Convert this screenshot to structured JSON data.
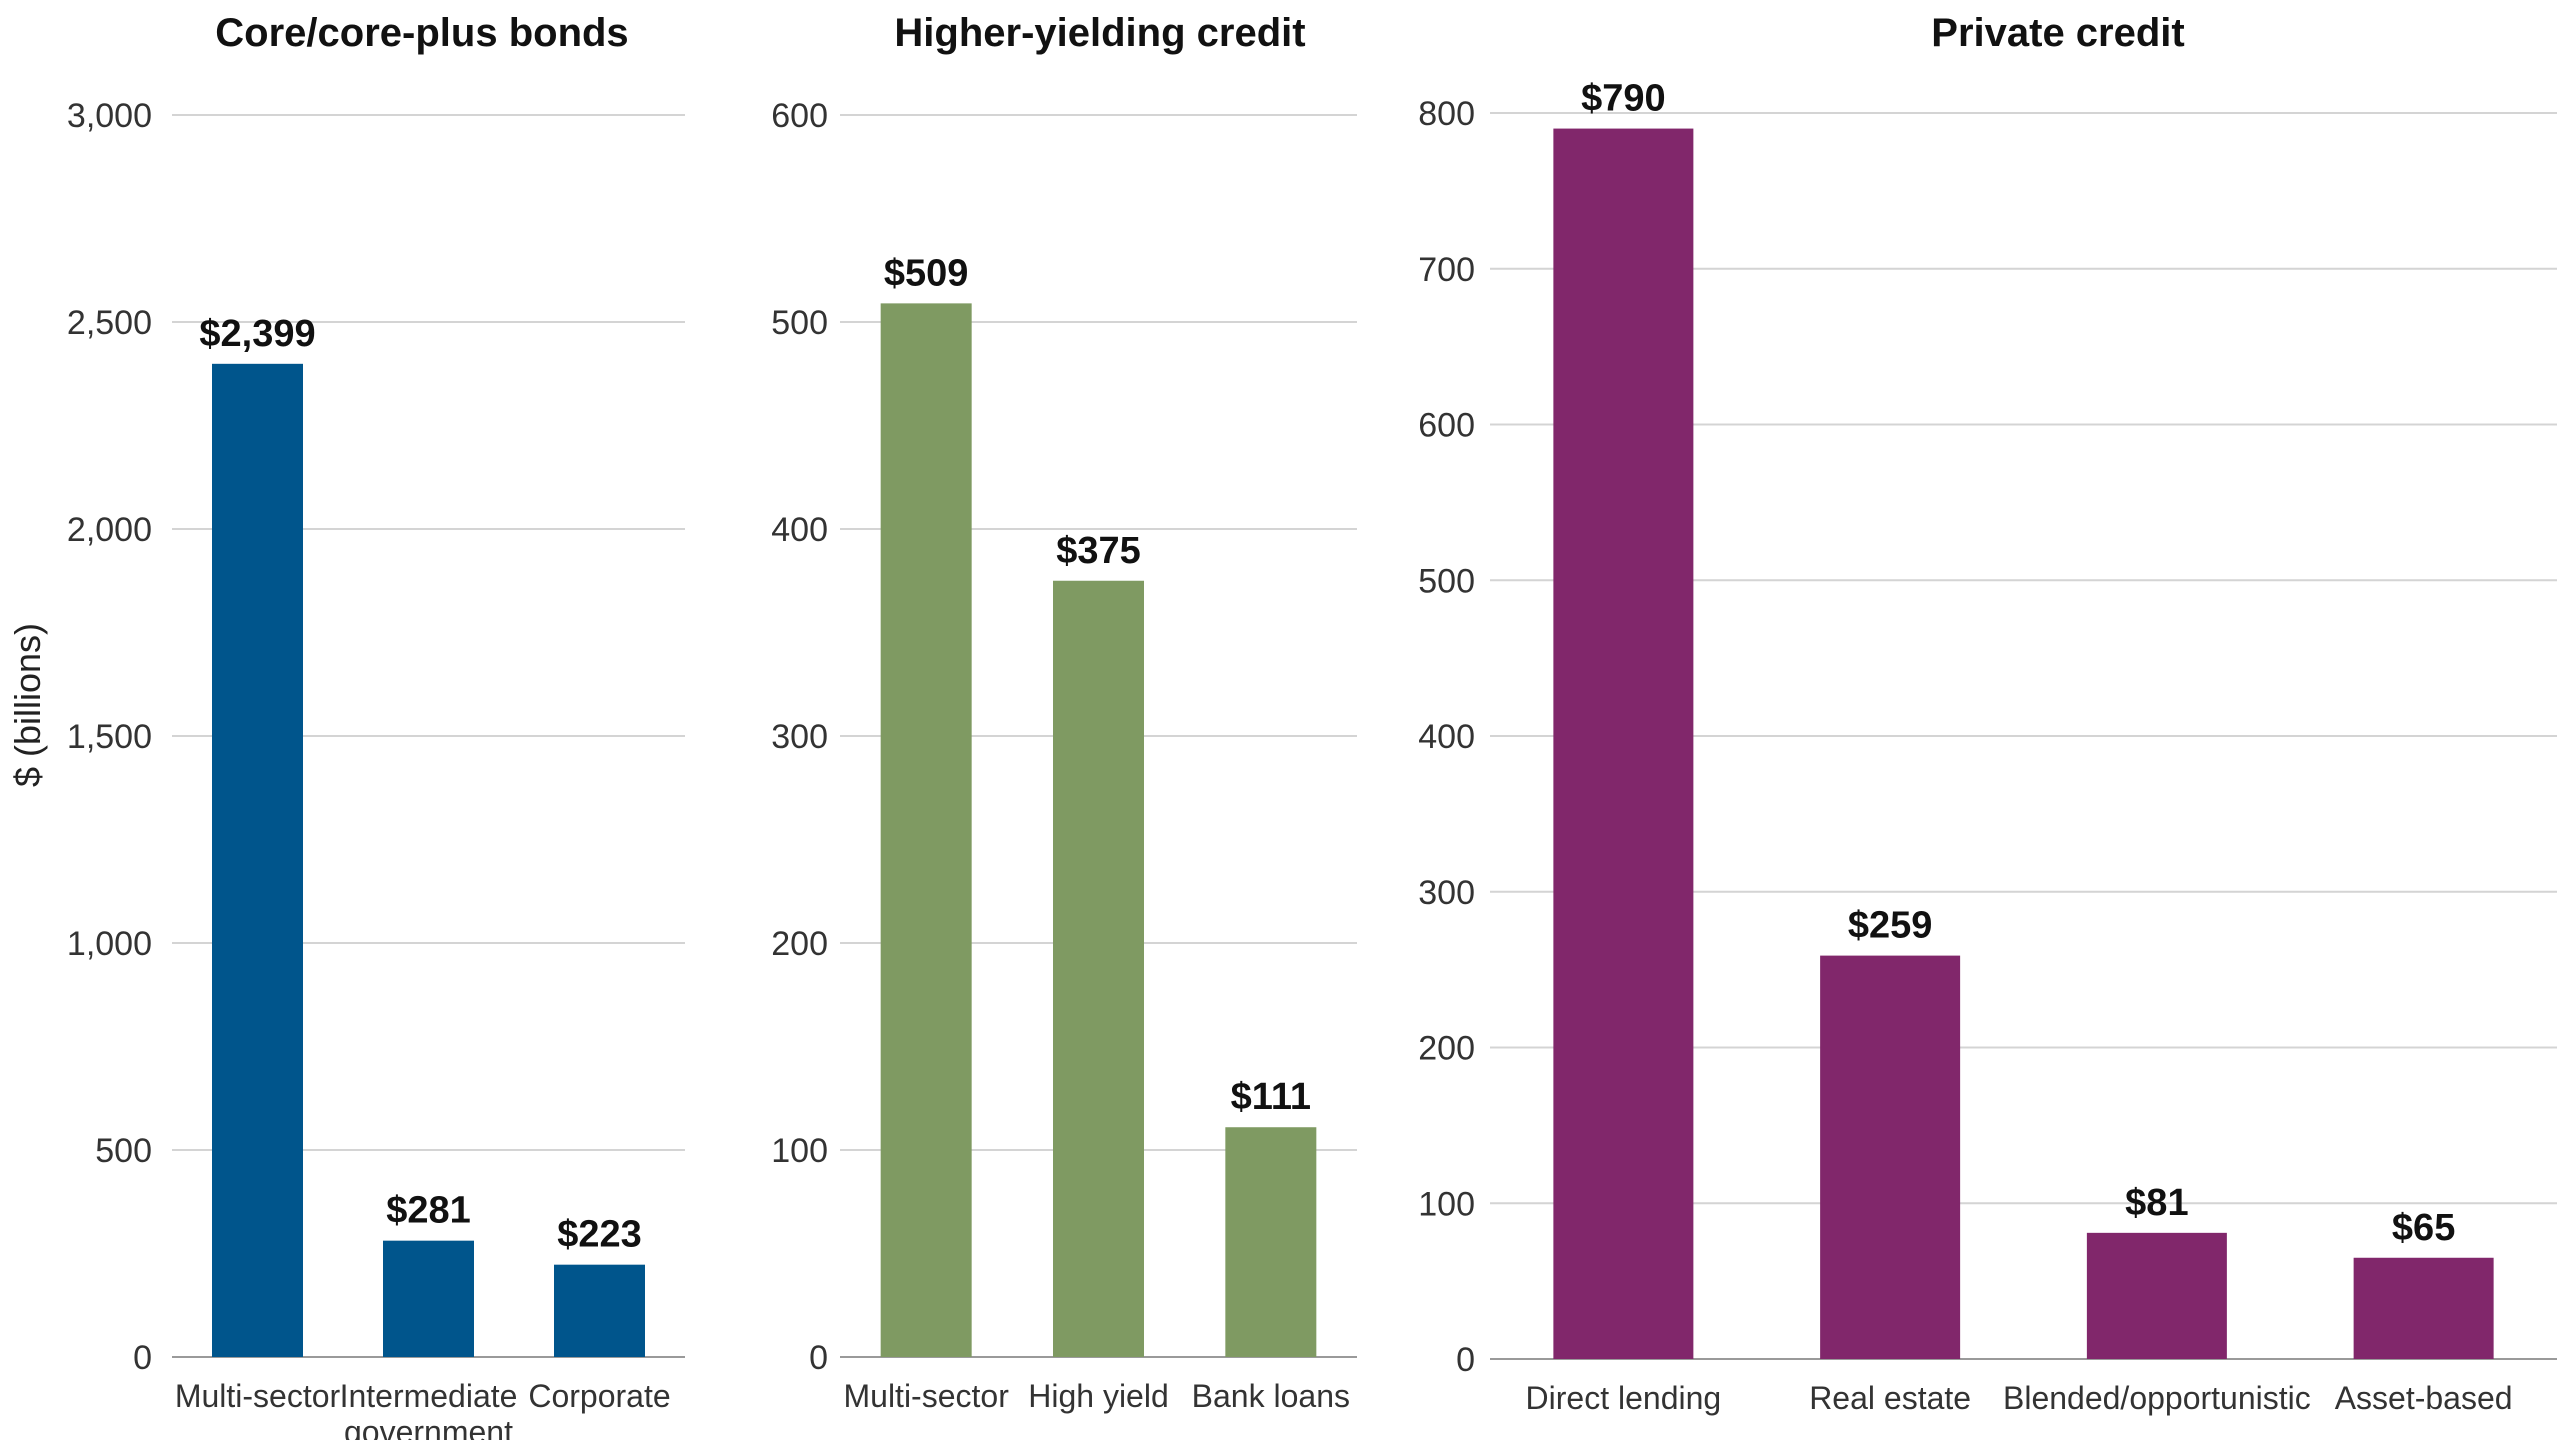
{
  "y_axis_label": "$ (billions)",
  "chart_data": [
    {
      "type": "bar",
      "title": "Core/core-plus bonds",
      "ylabel": "$ (billions)",
      "ylim": [
        0,
        3000
      ],
      "yticks": [
        0,
        500,
        1000,
        1500,
        2000,
        2500,
        3000
      ],
      "ytick_labels": [
        "0",
        "500",
        "1,000",
        "1,500",
        "2,000",
        "2,500",
        "3,000"
      ],
      "categories": [
        [
          "Multi-sector"
        ],
        [
          "Intermediate",
          "government"
        ],
        [
          "Corporate"
        ]
      ],
      "values": [
        2399,
        281,
        223
      ],
      "value_labels": [
        "$2,399",
        "$281",
        "$223"
      ],
      "color": "#00558C",
      "grid": true
    },
    {
      "type": "bar",
      "title": "Higher-yielding credit",
      "ylim": [
        0,
        600
      ],
      "yticks": [
        0,
        100,
        200,
        300,
        400,
        500,
        600
      ],
      "ytick_labels": [
        "0",
        "100",
        "200",
        "300",
        "400",
        "500",
        "600"
      ],
      "categories": [
        [
          "Multi-sector"
        ],
        [
          "High yield"
        ],
        [
          "Bank loans"
        ]
      ],
      "values": [
        509,
        375,
        111
      ],
      "value_labels": [
        "$509",
        "$375",
        "$111"
      ],
      "color": "#7F9A62",
      "grid": true
    },
    {
      "type": "bar",
      "title": "Private credit",
      "ylim": [
        0,
        800
      ],
      "yticks": [
        0,
        100,
        200,
        300,
        400,
        500,
        600,
        700,
        800
      ],
      "ytick_labels": [
        "0",
        "100",
        "200",
        "300",
        "400",
        "500",
        "600",
        "700",
        "800"
      ],
      "categories": [
        [
          "Direct lending"
        ],
        [
          "Real estate"
        ],
        [
          "Blended/opportunistic"
        ],
        [
          "Asset-based"
        ]
      ],
      "values": [
        790,
        259,
        81,
        65
      ],
      "value_labels": [
        "$790",
        "$259",
        "$81",
        "$65"
      ],
      "color": "#81276B",
      "grid": true
    }
  ]
}
